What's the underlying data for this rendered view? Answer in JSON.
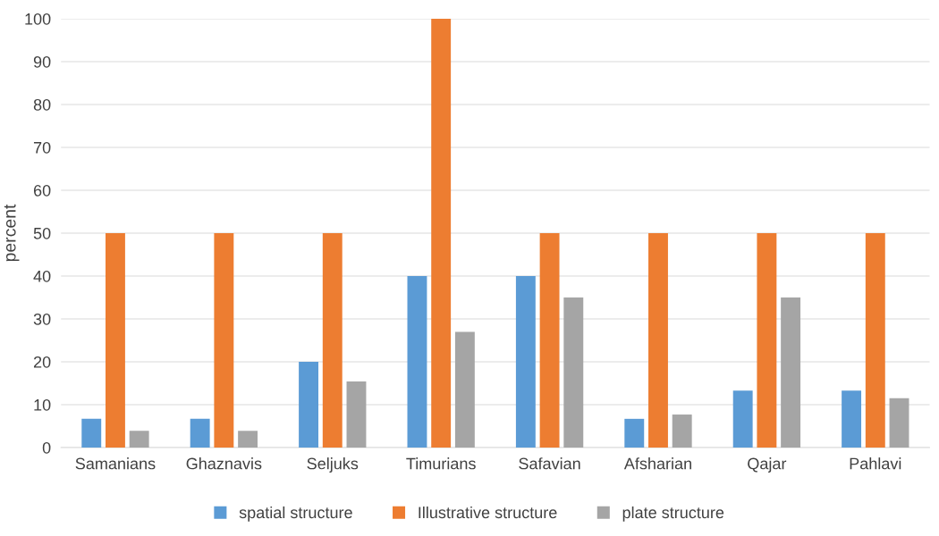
{
  "chart_data": {
    "type": "bar",
    "ylabel": "percent",
    "categories": [
      "Samanians",
      "Ghaznavis",
      "Seljuks",
      "Timurians",
      "Safavian",
      "Afsharian",
      "Qajar",
      "Pahlavi"
    ],
    "series": [
      {
        "name": "spatial structure",
        "color": "#5b9bd5",
        "values": [
          6.7,
          6.7,
          20,
          40,
          40,
          6.7,
          13.3,
          13.3
        ]
      },
      {
        "name": "Illustrative structure",
        "color": "#ed7d31",
        "values": [
          50,
          50,
          50,
          100,
          50,
          50,
          50,
          50
        ]
      },
      {
        "name": "plate structure",
        "color": "#a5a5a5",
        "values": [
          3.9,
          3.9,
          15.4,
          27,
          35,
          7.7,
          35,
          11.5
        ]
      }
    ],
    "ylim": [
      0,
      100
    ],
    "yticks": [
      0,
      10,
      20,
      30,
      40,
      50,
      60,
      70,
      80,
      90,
      100
    ],
    "grid": "y",
    "legend": "bottom"
  }
}
